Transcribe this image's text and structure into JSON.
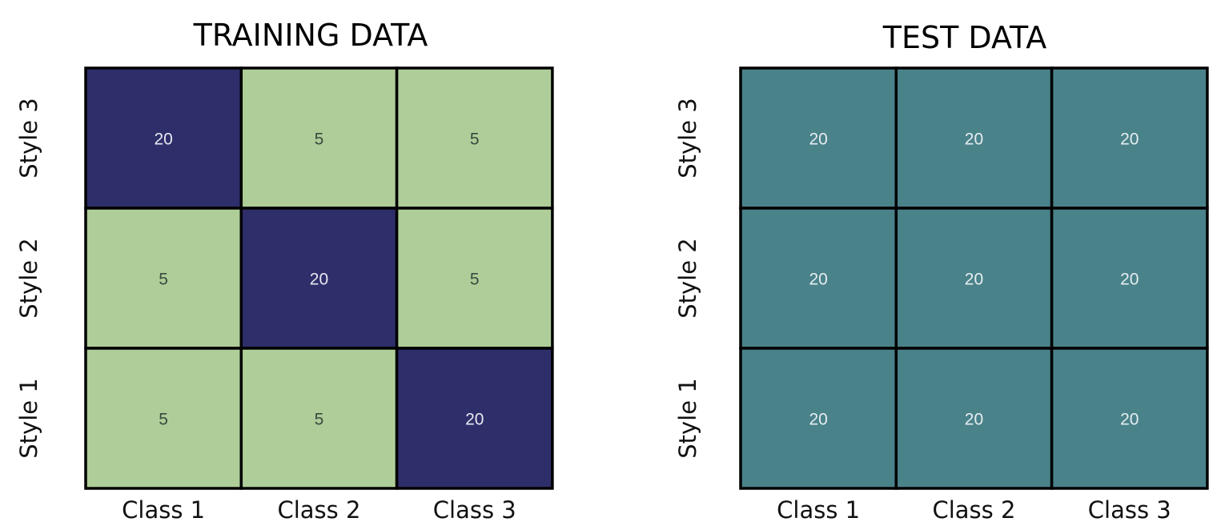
{
  "chart_data": [
    {
      "type": "heatmap",
      "title": "TRAINING DATA",
      "x_categories": [
        "Class 1",
        "Class 2",
        "Class 3"
      ],
      "y_categories": [
        "Style 3",
        "Style 2",
        "Style 1"
      ],
      "values": [
        [
          20,
          5,
          5
        ],
        [
          5,
          20,
          5
        ],
        [
          5,
          5,
          20
        ]
      ],
      "colors": {
        "high": "#2e2e6b",
        "low": "#aecd98",
        "high_text": "#e8e8f0",
        "low_text": "#3a4a40"
      }
    },
    {
      "type": "heatmap",
      "title": "TEST DATA",
      "x_categories": [
        "Class 1",
        "Class 2",
        "Class 3"
      ],
      "y_categories": [
        "Style 3",
        "Style 2",
        "Style 1"
      ],
      "values": [
        [
          20,
          20,
          20
        ],
        [
          20,
          20,
          20
        ],
        [
          20,
          20,
          20
        ]
      ],
      "colors": {
        "uniform": "#4a828a",
        "uniform_text": "#e6eef0"
      }
    }
  ]
}
